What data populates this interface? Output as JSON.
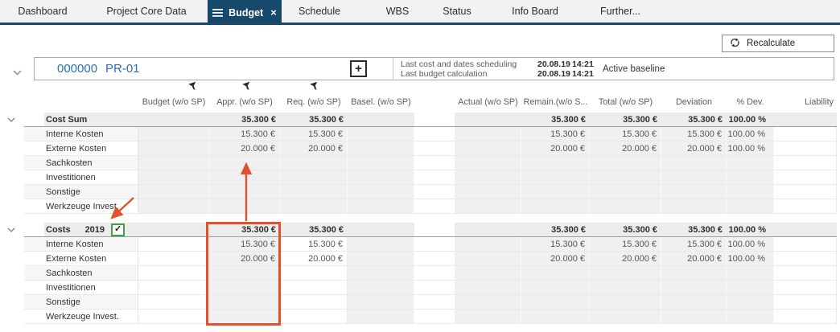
{
  "tabs": [
    {
      "label": "Dashboard",
      "active": false
    },
    {
      "label": "Project Core Data",
      "active": false
    },
    {
      "label": "Budget",
      "active": true
    },
    {
      "label": "Schedule",
      "active": false
    },
    {
      "label": "WBS",
      "active": false
    },
    {
      "label": "Status",
      "active": false
    },
    {
      "label": "Info Board",
      "active": false
    },
    {
      "label": "Further...",
      "active": false
    }
  ],
  "icons": {
    "close": "×",
    "plus": "+",
    "check": "✓"
  },
  "toolbar": {
    "recalculate_label": "Recalculate"
  },
  "project": {
    "id": "000000",
    "name": "PR-01",
    "info": [
      {
        "label": "Last cost and dates scheduling",
        "date": "20.08.19",
        "time": "14:21"
      },
      {
        "label": "Last budget calculation",
        "date": "20.08.19",
        "time": "14:21"
      }
    ],
    "baseline": "Active baseline"
  },
  "table": {
    "headers": [
      "Budget (w/o SP)",
      "Appr. (w/o SP)",
      "Req. (w/o SP)",
      "Basel. (w/o SP)",
      "Actual (w/o SP)",
      "Remain.(w/o S...",
      "Total (w/o SP)",
      "Deviation",
      "% Dev.",
      "Liability"
    ],
    "filtered_columns": [
      0,
      1,
      2
    ],
    "sections": [
      {
        "group": {
          "label": "Cost Sum",
          "year": "",
          "checked": false,
          "cells": [
            "",
            "35.300 €",
            "35.300 €",
            "",
            "",
            "35.300 €",
            "35.300 €",
            "35.300 €",
            "100.00 %",
            ""
          ]
        },
        "rows": [
          {
            "label": "Interne Kosten",
            "cells": [
              "",
              "15.300 €",
              "15.300 €",
              "",
              "",
              "15.300 €",
              "15.300 €",
              "15.300 €",
              "100.00 %",
              ""
            ]
          },
          {
            "label": "Externe Kosten",
            "cells": [
              "",
              "20.000 €",
              "20.000 €",
              "",
              "",
              "20.000 €",
              "20.000 €",
              "20.000 €",
              "100.00 %",
              ""
            ]
          },
          {
            "label": "Sachkosten",
            "cells": [
              "",
              "",
              "",
              "",
              "",
              "",
              "",
              "",
              "",
              ""
            ]
          },
          {
            "label": "Investitionen",
            "cells": [
              "",
              "",
              "",
              "",
              "",
              "",
              "",
              "",
              "",
              ""
            ]
          },
          {
            "label": "Sonstige",
            "cells": [
              "",
              "",
              "",
              "",
              "",
              "",
              "",
              "",
              "",
              ""
            ]
          },
          {
            "label": "Werkzeuge Invest.",
            "cells": [
              "",
              "",
              "",
              "",
              "",
              "",
              "",
              "",
              "",
              ""
            ]
          }
        ]
      },
      {
        "group": {
          "label": "Costs",
          "year": "2019",
          "checked": true,
          "cells": [
            "",
            "35.300 €",
            "35.300 €",
            "",
            "",
            "35.300 €",
            "35.300 €",
            "35.300 €",
            "100.00 %",
            ""
          ]
        },
        "rows": [
          {
            "label": "Interne Kosten",
            "cells": [
              "",
              "15.300 €",
              "15.300 €",
              "",
              "",
              "15.300 €",
              "15.300 €",
              "15.300 €",
              "100.00 %",
              ""
            ]
          },
          {
            "label": "Externe Kosten",
            "cells": [
              "",
              "20.000 €",
              "20.000 €",
              "",
              "",
              "20.000 €",
              "20.000 €",
              "20.000 €",
              "100.00 %",
              ""
            ]
          },
          {
            "label": "Sachkosten",
            "cells": [
              "",
              "",
              "",
              "",
              "",
              "",
              "",
              "",
              "",
              ""
            ]
          },
          {
            "label": "Investitionen",
            "cells": [
              "",
              "",
              "",
              "",
              "",
              "",
              "",
              "",
              "",
              ""
            ]
          },
          {
            "label": "Sonstige",
            "cells": [
              "",
              "",
              "",
              "",
              "",
              "",
              "",
              "",
              "",
              ""
            ]
          },
          {
            "label": "Werkzeuge Invest.",
            "cells": [
              "",
              "",
              "",
              "",
              "",
              "",
              "",
              "",
              "",
              ""
            ]
          }
        ]
      }
    ]
  },
  "colors": {
    "tab_active": "#17496b",
    "accent_blue": "#2a6eb0",
    "annotation_red": "#e0512c",
    "checkbox_green": "#44a244"
  }
}
